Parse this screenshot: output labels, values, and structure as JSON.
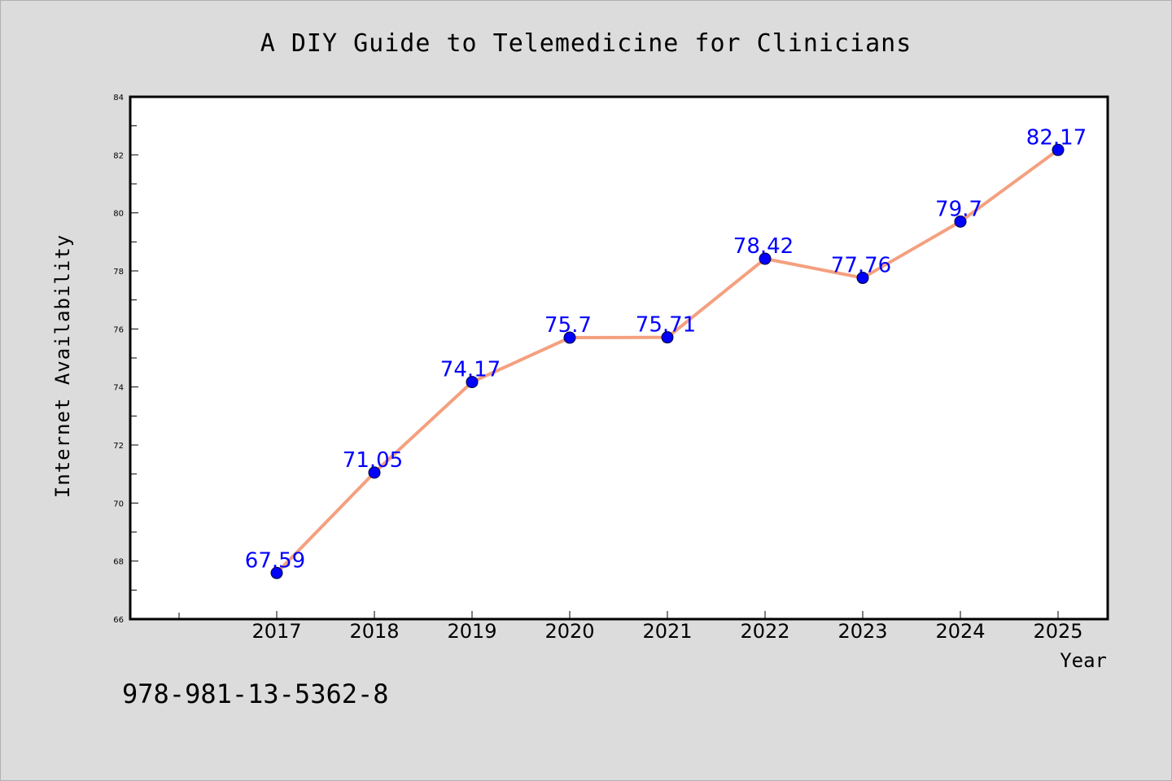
{
  "chart_data": {
    "type": "line",
    "title": "A DIY Guide to Telemedicine for Clinicians",
    "xlabel": "Year",
    "ylabel": "Internet Availability",
    "categories": [
      "2017",
      "2018",
      "2019",
      "2020",
      "2021",
      "2022",
      "2023",
      "2024",
      "2025"
    ],
    "series": [
      {
        "values": [
          67.59,
          71.05,
          74.17,
          75.7,
          75.71,
          78.42,
          77.76,
          79.7,
          82.17
        ],
        "data_labels": [
          "67.59",
          "71.05",
          "74.17",
          "75.7",
          "75.71",
          "78.42",
          "77.76",
          "79.7",
          "82.17"
        ]
      }
    ],
    "ylim": [
      66,
      84
    ],
    "yticks": [
      "66",
      "68",
      "70",
      "72",
      "74",
      "76",
      "78",
      "80",
      "82",
      "84"
    ],
    "grid": false,
    "legend": "none",
    "colors": {
      "line": "#f4a07f",
      "marker": "#0000ff",
      "data_label": "#0000ff",
      "plot_bg": "#ffffff",
      "figure_bg": "#dcdcdc"
    }
  },
  "footer": {
    "isbn": "978-981-13-5362-8"
  }
}
